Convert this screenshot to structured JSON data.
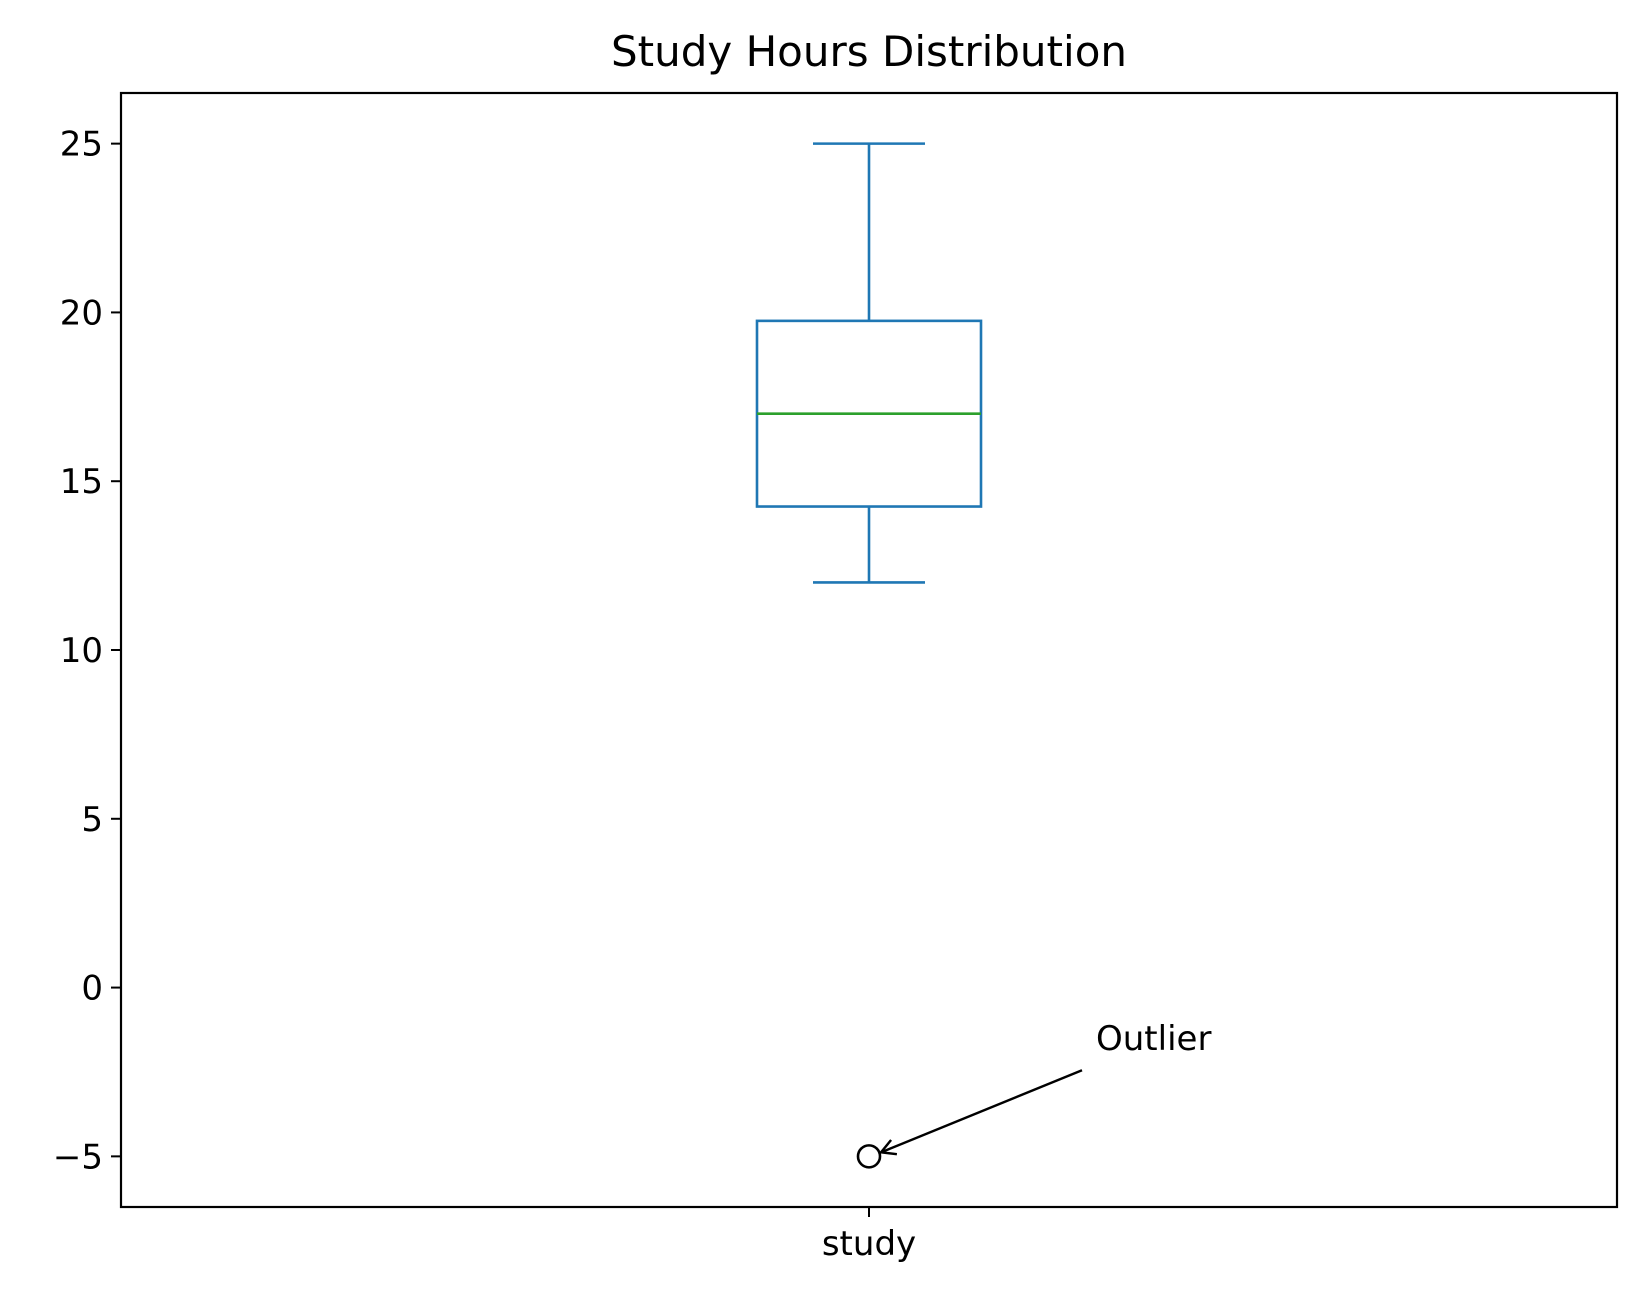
{
  "chart_data": {
    "type": "box",
    "title": "Study Hours Distribution",
    "xlabel": "",
    "ylabel": "",
    "categories": [
      "study"
    ],
    "ylim": [
      -6.5,
      26.5
    ],
    "yticks": [
      -5,
      0,
      5,
      10,
      15,
      20,
      25
    ],
    "ytick_labels": [
      "−5",
      "0",
      "5",
      "10",
      "15",
      "20",
      "25"
    ],
    "grid": false,
    "series": [
      {
        "category": "study",
        "whisker_low": 12,
        "q1": 14.25,
        "median": 17,
        "q3": 19.75,
        "whisker_high": 25,
        "outliers": [
          -5
        ]
      }
    ],
    "annotations": [
      {
        "text": "Outlier",
        "target_x": "study",
        "target_y": -5,
        "text_y": -1.5
      }
    ],
    "colors": {
      "box": "#1f77b4",
      "median": "#2ca02c",
      "outlier": "#000000"
    }
  }
}
